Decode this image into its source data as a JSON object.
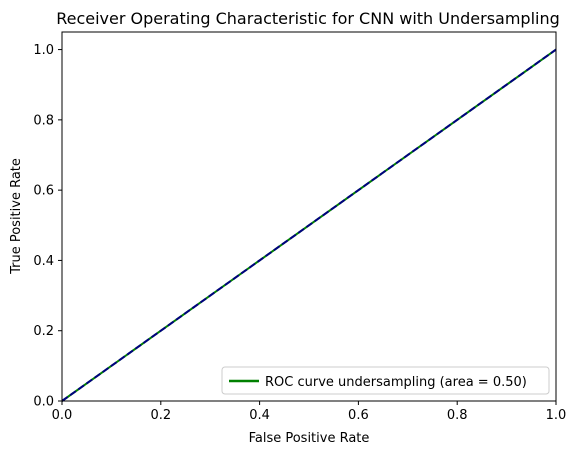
{
  "chart_data": {
    "type": "line",
    "title": "Receiver Operating Characteristic for CNN with Undersampling",
    "xlabel": "False Positive Rate",
    "ylabel": "True Positive Rate",
    "xlim": [
      0.0,
      1.0
    ],
    "ylim": [
      0.0,
      1.05
    ],
    "xticks": [
      "0.0",
      "0.2",
      "0.4",
      "0.6",
      "0.8",
      "1.0"
    ],
    "yticks": [
      "0.0",
      "0.2",
      "0.4",
      "0.6",
      "0.8",
      "1.0"
    ],
    "grid": false,
    "legend_position": "lower right",
    "series": [
      {
        "name": "ROC curve undersampling (area = 0.50)",
        "x": [
          0.0,
          1.0
        ],
        "y": [
          0.0,
          1.0
        ],
        "color": "#008000",
        "style": "solid",
        "in_legend": true
      },
      {
        "x": [
          0.0,
          1.0
        ],
        "y": [
          0.0,
          1.0
        ],
        "color": "#000080",
        "style": "dashed",
        "in_legend": false
      }
    ]
  }
}
